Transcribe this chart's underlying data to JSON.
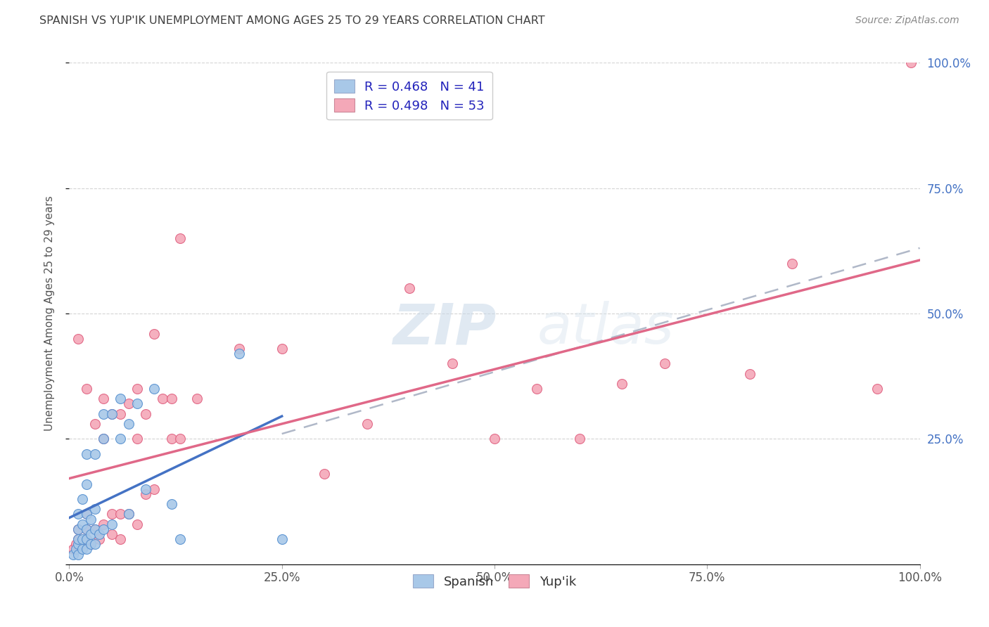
{
  "title": "SPANISH VS YUP'IK UNEMPLOYMENT AMONG AGES 25 TO 29 YEARS CORRELATION CHART",
  "source": "Source: ZipAtlas.com",
  "ylabel": "Unemployment Among Ages 25 to 29 years",
  "xlim": [
    0,
    1
  ],
  "ylim": [
    0,
    1
  ],
  "xtick_labels": [
    "0.0%",
    "25.0%",
    "50.0%",
    "75.0%",
    "100.0%"
  ],
  "xtick_vals": [
    0,
    0.25,
    0.5,
    0.75,
    1.0
  ],
  "ytick_labels_right": [
    "100.0%",
    "75.0%",
    "50.0%",
    "25.0%"
  ],
  "ytick_vals_right": [
    1.0,
    0.75,
    0.5,
    0.25
  ],
  "watermark_zip": "ZIP",
  "watermark_atlas": "atlas",
  "legend_r1": "R = 0.468",
  "legend_n1": "N = 41",
  "legend_r2": "R = 0.498",
  "legend_n2": "N = 53",
  "spanish_color": "#a8c8e8",
  "yupik_color": "#f4a8b8",
  "spanish_edge_color": "#5590d0",
  "yupik_edge_color": "#e06080",
  "spanish_line_color": "#4472c4",
  "yupik_line_color": "#e06888",
  "dashed_line_color": "#b0b8c8",
  "background_color": "#ffffff",
  "grid_color": "#d0d0d0",
  "title_color": "#404040",
  "spanish_x": [
    0.005,
    0.008,
    0.01,
    0.01,
    0.01,
    0.01,
    0.01,
    0.015,
    0.015,
    0.015,
    0.015,
    0.02,
    0.02,
    0.02,
    0.02,
    0.02,
    0.02,
    0.025,
    0.025,
    0.025,
    0.03,
    0.03,
    0.03,
    0.03,
    0.035,
    0.04,
    0.04,
    0.04,
    0.05,
    0.05,
    0.06,
    0.06,
    0.07,
    0.07,
    0.08,
    0.09,
    0.1,
    0.12,
    0.13,
    0.2,
    0.25
  ],
  "spanish_y": [
    0.02,
    0.03,
    0.02,
    0.04,
    0.05,
    0.07,
    0.1,
    0.03,
    0.05,
    0.08,
    0.13,
    0.03,
    0.05,
    0.07,
    0.1,
    0.16,
    0.22,
    0.04,
    0.06,
    0.09,
    0.04,
    0.07,
    0.11,
    0.22,
    0.06,
    0.07,
    0.25,
    0.3,
    0.08,
    0.3,
    0.25,
    0.33,
    0.28,
    0.1,
    0.32,
    0.15,
    0.35,
    0.12,
    0.05,
    0.42,
    0.05
  ],
  "yupik_x": [
    0.005,
    0.008,
    0.01,
    0.01,
    0.01,
    0.015,
    0.02,
    0.02,
    0.02,
    0.02,
    0.025,
    0.03,
    0.03,
    0.035,
    0.04,
    0.04,
    0.04,
    0.05,
    0.05,
    0.05,
    0.06,
    0.06,
    0.06,
    0.07,
    0.07,
    0.08,
    0.08,
    0.08,
    0.09,
    0.09,
    0.1,
    0.1,
    0.11,
    0.12,
    0.12,
    0.13,
    0.13,
    0.15,
    0.2,
    0.25,
    0.3,
    0.35,
    0.4,
    0.45,
    0.5,
    0.55,
    0.6,
    0.65,
    0.7,
    0.8,
    0.85,
    0.95,
    0.99
  ],
  "yupik_y": [
    0.03,
    0.04,
    0.05,
    0.07,
    0.45,
    0.04,
    0.05,
    0.07,
    0.1,
    0.35,
    0.04,
    0.07,
    0.28,
    0.05,
    0.08,
    0.25,
    0.33,
    0.06,
    0.1,
    0.3,
    0.05,
    0.1,
    0.3,
    0.1,
    0.32,
    0.08,
    0.25,
    0.35,
    0.14,
    0.3,
    0.15,
    0.46,
    0.33,
    0.25,
    0.33,
    0.25,
    0.65,
    0.33,
    0.43,
    0.43,
    0.18,
    0.28,
    0.55,
    0.4,
    0.25,
    0.35,
    0.25,
    0.36,
    0.4,
    0.38,
    0.6,
    0.35,
    1.0
  ],
  "spanish_R": 0.468,
  "spanish_N": 41,
  "yupik_R": 0.498,
  "yupik_N": 53
}
